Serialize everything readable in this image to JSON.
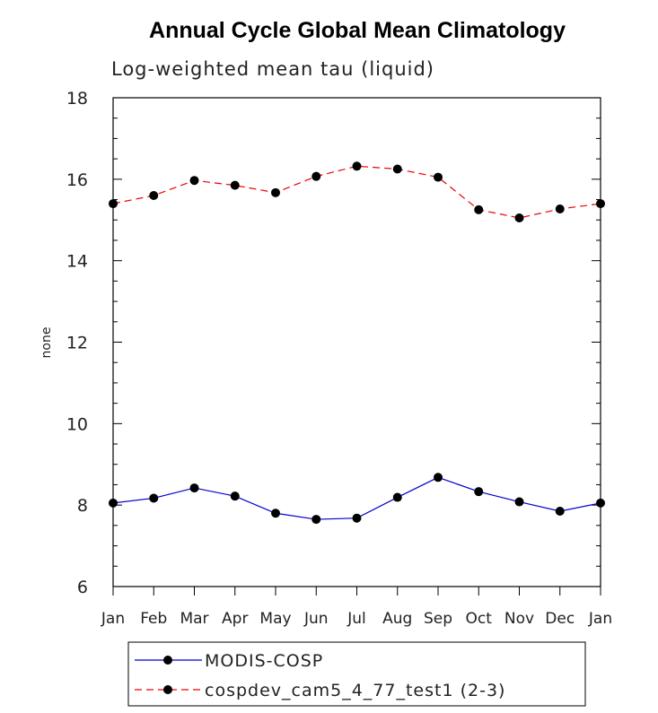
{
  "chart_data": {
    "type": "line",
    "title": "Annual Cycle Global Mean Climatology",
    "subtitle": "Log-weighted mean tau (liquid)",
    "xlabel": "",
    "ylabel": "none",
    "categories": [
      "Jan",
      "Feb",
      "Mar",
      "Apr",
      "May",
      "Jun",
      "Jul",
      "Aug",
      "Sep",
      "Oct",
      "Nov",
      "Dec",
      "Jan"
    ],
    "ylim": [
      6,
      18
    ],
    "yticks": [
      6,
      8,
      10,
      12,
      14,
      16,
      18
    ],
    "grid": false,
    "legend_placement": "bottom",
    "series": [
      {
        "name": "MODIS-COSP",
        "color": "#0000cc",
        "line_style": "solid",
        "marker": "filled-circle",
        "values": [
          8.05,
          8.17,
          8.42,
          8.22,
          7.8,
          7.65,
          7.68,
          8.19,
          8.68,
          8.33,
          8.08,
          7.85,
          8.05
        ]
      },
      {
        "name": "cospdev_cam5_4_77_test1 (2-3)",
        "color": "#ee0000",
        "line_style": "dashed",
        "marker": "filled-circle",
        "values": [
          15.4,
          15.6,
          15.97,
          15.85,
          15.67,
          16.07,
          16.32,
          16.25,
          16.05,
          15.25,
          15.05,
          15.27,
          15.4
        ]
      }
    ]
  }
}
